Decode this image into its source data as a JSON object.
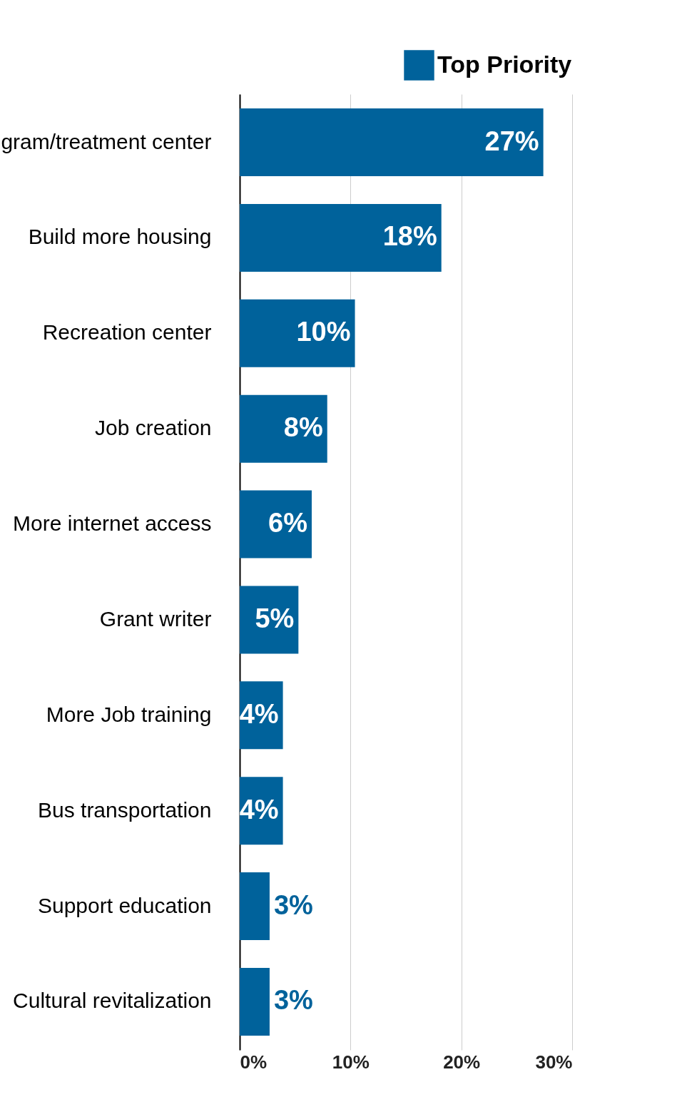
{
  "chart_data": {
    "type": "bar",
    "orientation": "horizontal",
    "categories": [
      "gram/treatment center",
      "Build more housing",
      "Recreation center",
      "Job creation",
      "More internet access",
      "Grant writer",
      "More Job training",
      "Bus transportation",
      "Support education",
      "Cultural revitalization"
    ],
    "series": [
      {
        "name": "Top Priority",
        "color": "#00629b",
        "values": [
          27.4,
          18.2,
          10.4,
          7.9,
          6.5,
          5.3,
          3.9,
          3.9,
          2.7,
          2.7
        ],
        "value_labels": [
          "27%",
          "18%",
          "10%",
          "8%",
          "6%",
          "5%",
          "4%",
          "4%",
          "3%",
          "3%"
        ]
      }
    ],
    "xlim": [
      0,
      30
    ],
    "xticks": [
      {
        "value": 0,
        "label": "0%"
      },
      {
        "value": 10,
        "label": "10%"
      },
      {
        "value": 20,
        "label": "20%"
      },
      {
        "value": 30,
        "label": "30%"
      }
    ],
    "grid": "x",
    "legend": "top right"
  }
}
